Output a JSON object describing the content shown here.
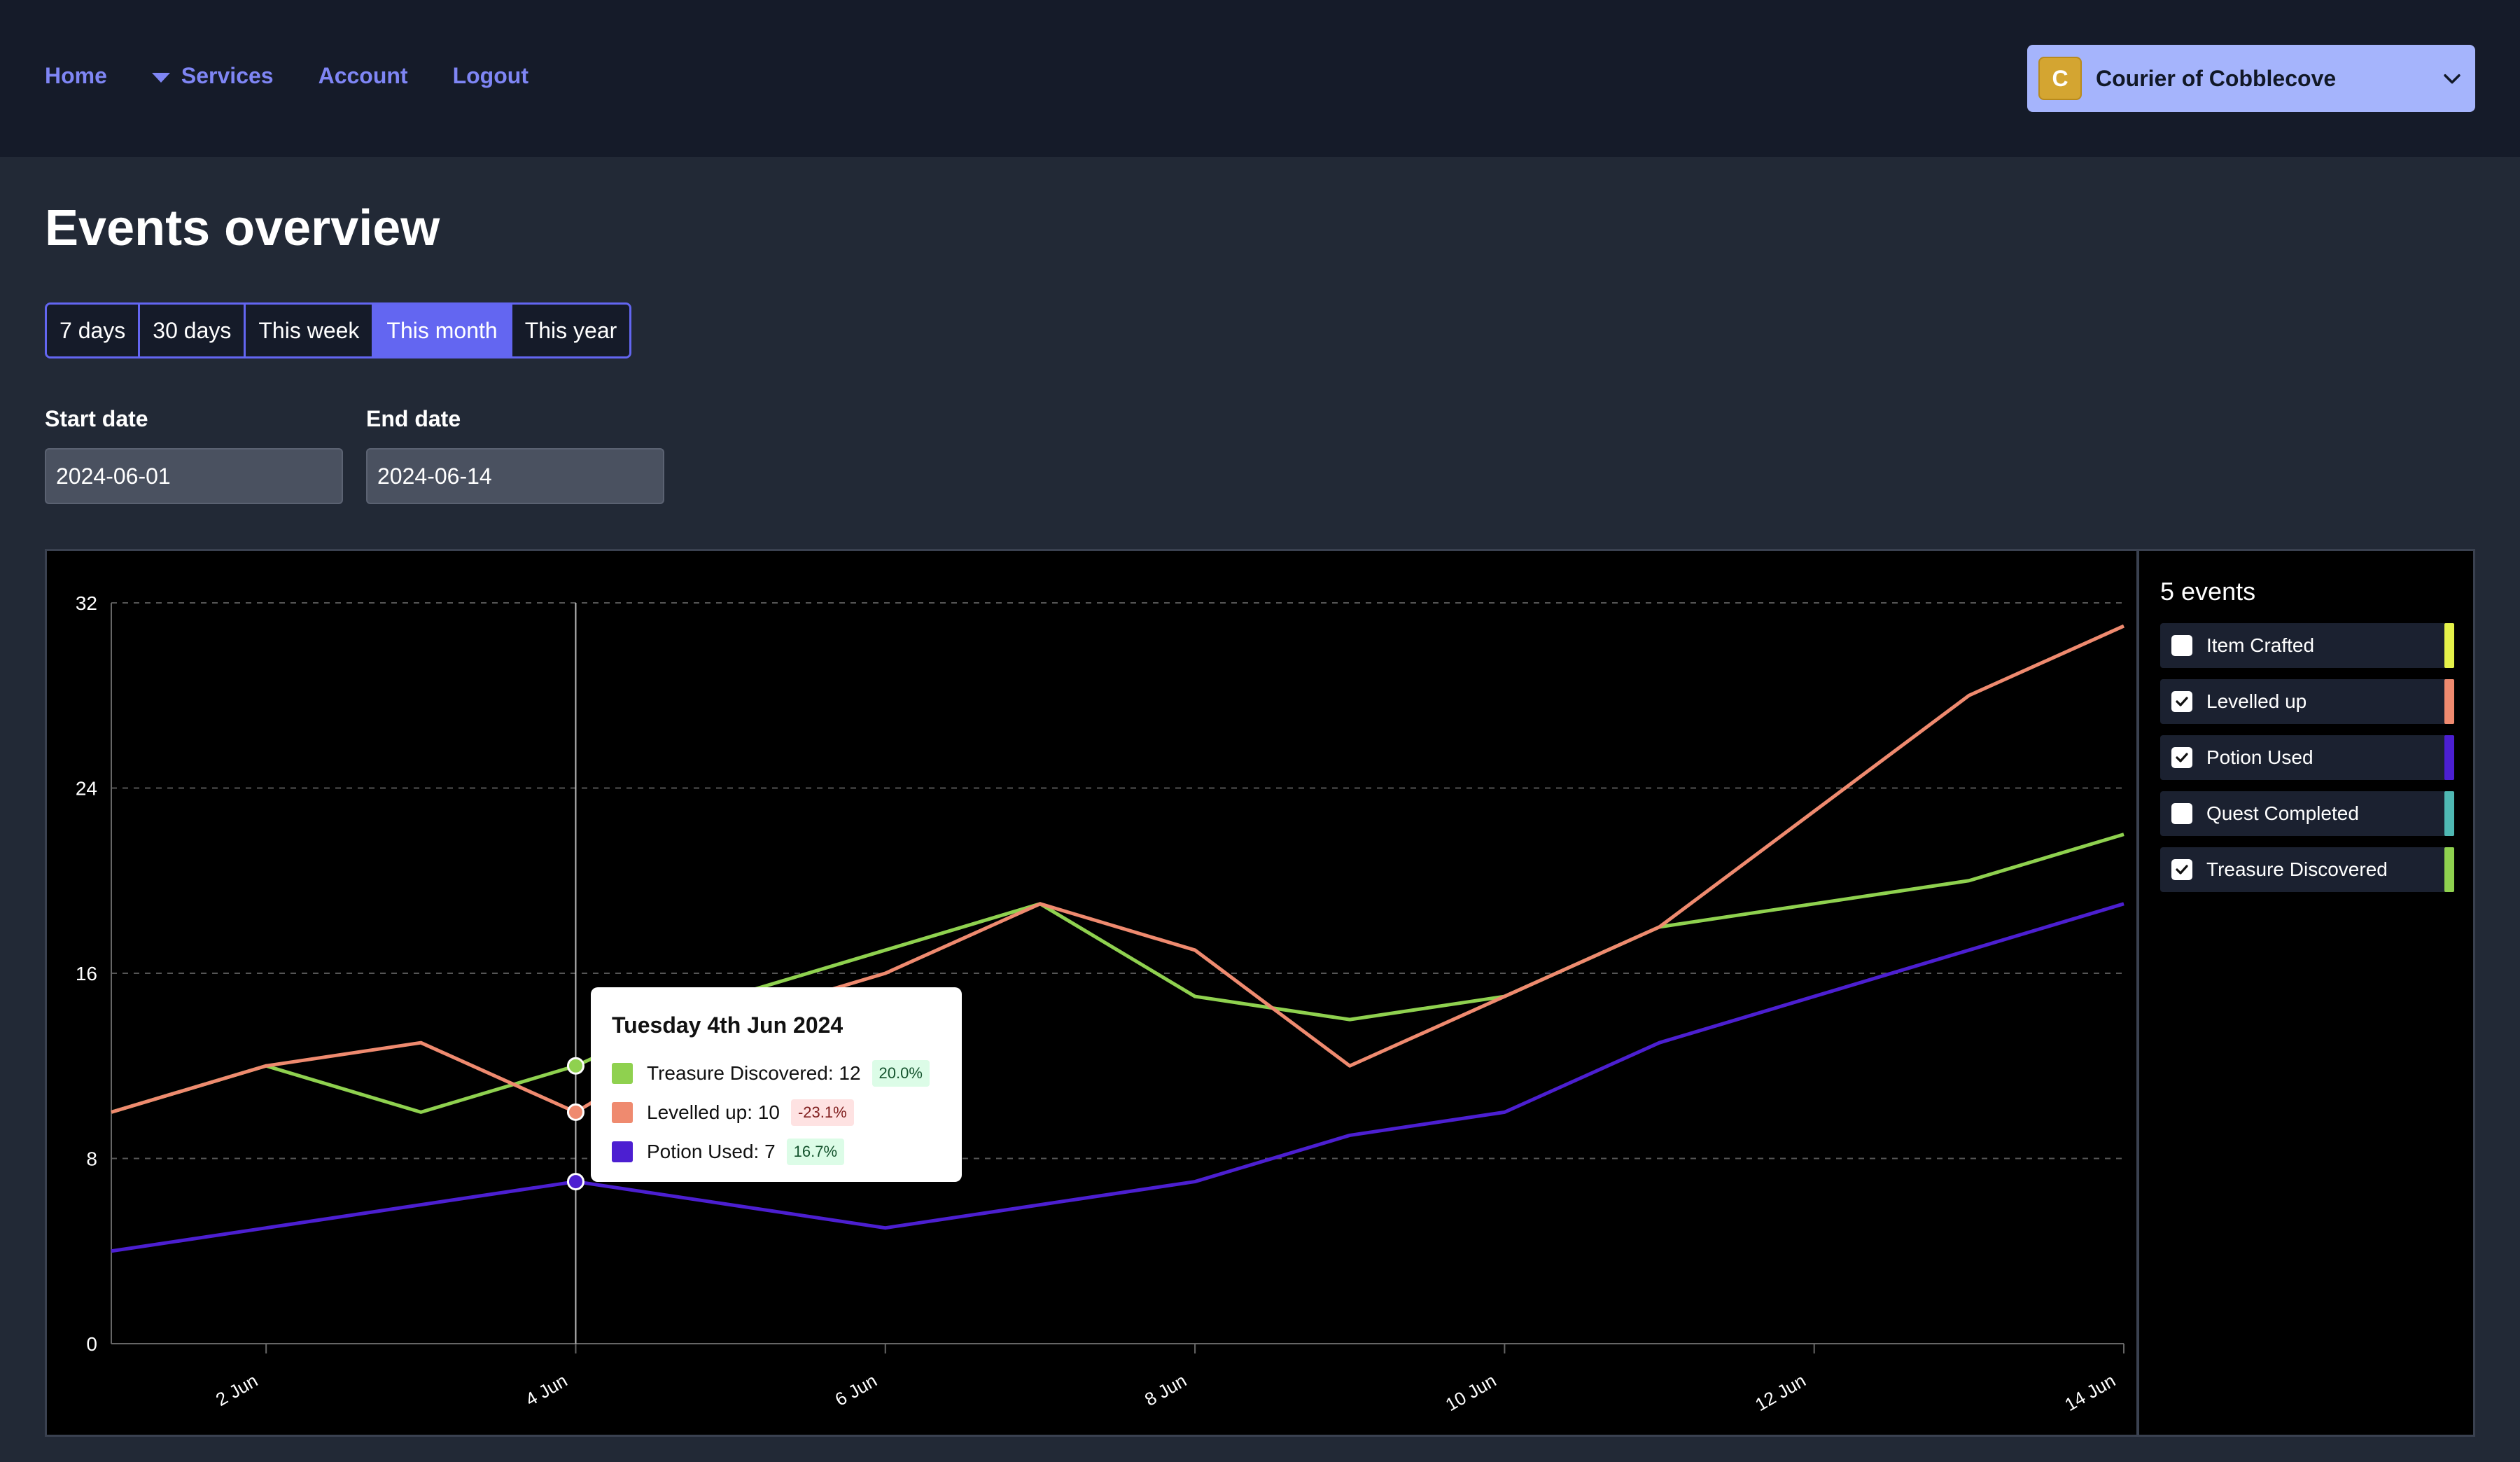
{
  "nav": {
    "home": "Home",
    "services": "Services",
    "account": "Account",
    "logout": "Logout"
  },
  "org": {
    "initial": "C",
    "name": "Courier of Cobblecove"
  },
  "page": {
    "title": "Events overview"
  },
  "ranges": [
    "7 days",
    "30 days",
    "This week",
    "This month",
    "This year"
  ],
  "active_range": "This month",
  "filters": {
    "start_label": "Start date",
    "start_value": "2024-06-01",
    "end_label": "End date",
    "end_value": "2024-06-14"
  },
  "legend": {
    "title": "5 events",
    "items": [
      {
        "label": "Item Crafted",
        "checked": false,
        "color": "#e5f24a"
      },
      {
        "label": "Levelled up",
        "checked": true,
        "color": "#ef8a6f"
      },
      {
        "label": "Potion Used",
        "checked": true,
        "color": "#4c1fd1"
      },
      {
        "label": "Quest Completed",
        "checked": false,
        "color": "#4fb8b3"
      },
      {
        "label": "Treasure Discovered",
        "checked": true,
        "color": "#8fd14f"
      }
    ]
  },
  "tooltip": {
    "date": "Tuesday 4th Jun 2024",
    "rows": [
      {
        "text": "Treasure Discovered: 12",
        "change": "20.0%",
        "dir": "up",
        "color": "#8fd14f"
      },
      {
        "text": "Levelled up: 10",
        "change": "-23.1%",
        "dir": "down",
        "color": "#ef8a6f"
      },
      {
        "text": "Potion Used: 7",
        "change": "16.7%",
        "dir": "up",
        "color": "#4c1fd1"
      }
    ]
  },
  "chart_data": {
    "type": "line",
    "x": [
      "2024-06-01",
      "2024-06-02",
      "2024-06-03",
      "2024-06-04",
      "2024-06-05",
      "2024-06-06",
      "2024-06-07",
      "2024-06-08",
      "2024-06-09",
      "2024-06-10",
      "2024-06-11",
      "2024-06-12",
      "2024-06-13",
      "2024-06-14"
    ],
    "x_tick_labels": [
      "2 Jun",
      "4 Jun",
      "6 Jun",
      "8 Jun",
      "10 Jun",
      "12 Jun",
      "14 Jun"
    ],
    "y_ticks": [
      0,
      8,
      16,
      24,
      32
    ],
    "ylim": [
      0,
      32
    ],
    "grid": true,
    "hover_date": "2024-06-04",
    "series": [
      {
        "name": "Treasure Discovered",
        "color": "#8fd14f",
        "values": [
          10,
          12,
          10,
          12,
          15,
          17,
          19,
          15,
          14,
          15,
          18,
          19,
          20,
          22
        ]
      },
      {
        "name": "Levelled up",
        "color": "#ef8a6f",
        "values": [
          10,
          12,
          13,
          10,
          14,
          16,
          19,
          17,
          12,
          15,
          18,
          23,
          28,
          31
        ]
      },
      {
        "name": "Potion Used",
        "color": "#4c1fd1",
        "values": [
          4,
          5,
          6,
          7,
          6,
          5,
          6,
          7,
          9,
          10,
          13,
          15,
          17,
          19
        ]
      }
    ]
  }
}
